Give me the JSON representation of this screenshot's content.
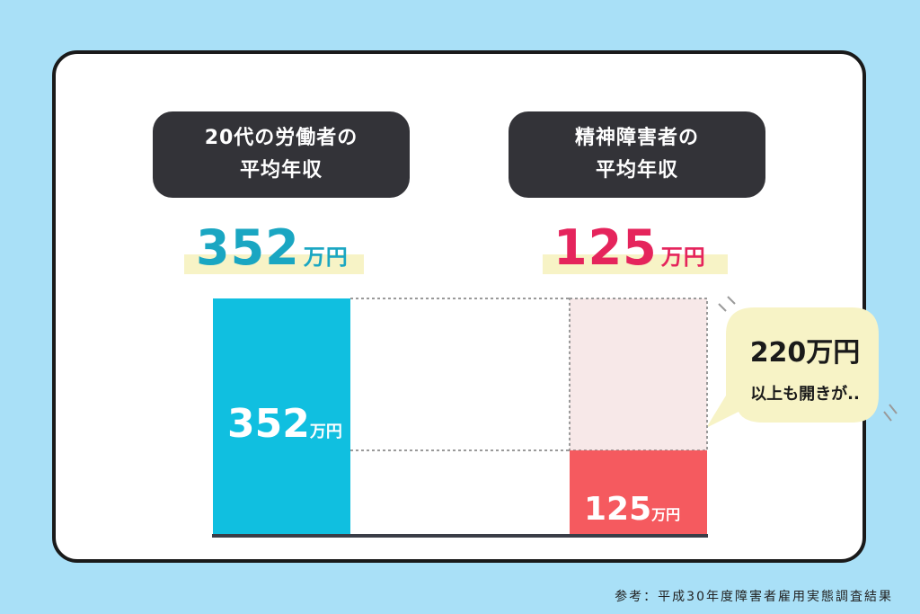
{
  "labels": {
    "left_title_line1": "20代の労働者の",
    "left_title_line2": "平均年収",
    "right_title_line1": "精神障害者の",
    "right_title_line2": "平均年収",
    "left_value_num": "352",
    "left_value_unit": "万円",
    "right_value_num": "125",
    "right_value_unit": "万円",
    "callout_main": "220万円",
    "callout_sub": "以上も開きが..",
    "source": "参考：平成30年度障害者雇用実態調査結果"
  },
  "colors": {
    "left": "#10bfe0",
    "right": "#f55a5f",
    "left_text": "#1aa6c2",
    "right_text": "#e5245c",
    "gap_fill": "#f7e8e8"
  },
  "chart_data": {
    "type": "bar",
    "categories": [
      "20代の労働者の平均年収",
      "精神障害者の平均年収"
    ],
    "values": [
      352,
      125
    ],
    "unit": "万円",
    "gap": 227,
    "title": "",
    "xlabel": "",
    "ylabel": ""
  }
}
